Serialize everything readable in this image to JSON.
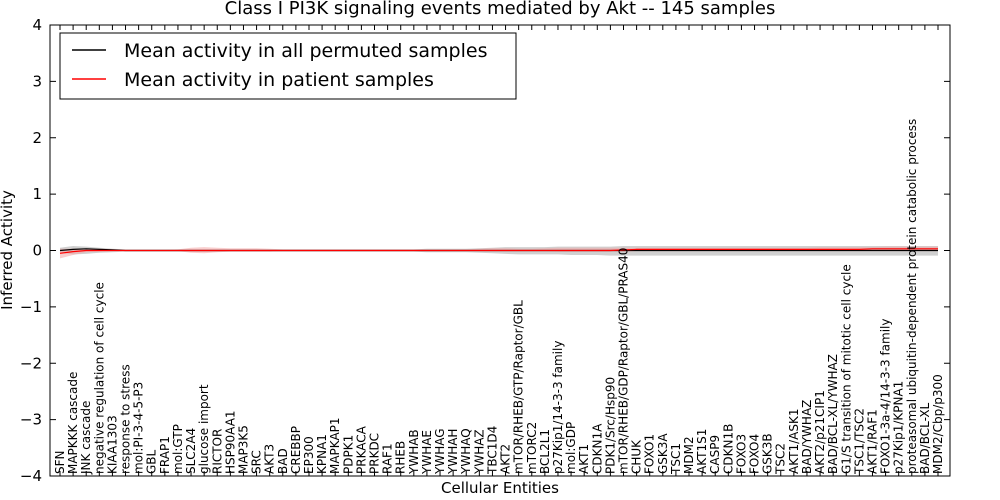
{
  "chart_data": {
    "type": "line",
    "title": "Class I PI3K signaling events mediated by Akt -- 145 samples",
    "xlabel": "Cellular Entities",
    "ylabel": "Inferred Activity",
    "ylim": [
      -4,
      4
    ],
    "yticks": [
      -4,
      -3,
      -2,
      -1,
      0,
      1,
      2,
      3,
      4
    ],
    "legend_position": "top-left",
    "categories": [
      "SFN",
      "MAPKKK cascade",
      "JNK cascade",
      "negative regulation of cell cycle",
      "KIAA1303",
      "response to stress",
      "mol:PI-3-4-5-P3",
      "GBL",
      "FRAP1",
      "mol:GTP",
      "SLC2A4",
      "glucose import",
      "RICTOR",
      "HSP90AA1",
      "MAP3K5",
      "SRC",
      "AKT3",
      "BAD",
      "CREBBP",
      "EP300",
      "KPNA1",
      "MAPKAP1",
      "PDPK1",
      "PRKACA",
      "PRKDC",
      "RAF1",
      "RHEB",
      "YWHAB",
      "YWHAE",
      "YWHAG",
      "YWHAH",
      "YWHAQ",
      "YWHAZ",
      "TBC1D4",
      "AKT2",
      "mTOR/RHEB/GTP/Raptor/GBL",
      "mTORC2",
      "BCL2L1",
      "p27Kip1/14-3-3 family",
      "mol:GDP",
      "AKT1",
      "CDKN1A",
      "PDK1/Src/Hsp90",
      "mTOR/RHEB/GDP/Raptor/GBL/PRAS40",
      "CHUK",
      "FOXO1",
      "GSK3A",
      "TSC1",
      "MDM2",
      "AKT1S1",
      "CASP9",
      "CDKN1B",
      "FOXO3",
      "FOXO4",
      "GSK3B",
      "TSC2",
      "AKT1/ASK1",
      "BAD/YWHAZ",
      "AKT2/p21CIP1",
      "BAD/BCL-XL/YWHAZ",
      "G1/S transition of mitotic cell cycle",
      "TSC1/TSC2",
      "AKT1/RAF1",
      "FOXO1-3a-4/14-3-3 family",
      "p27Kip1/KPNA1",
      "proteasomal ubiquitin-dependent protein catabolic process",
      "BAD/BCL-XL",
      "MDM2/Cbp/p300"
    ],
    "series": [
      {
        "name": "Mean activity in all permuted samples",
        "color": "#000000",
        "band_color": "#b0b0b0",
        "values": [
          0,
          0.02,
          0.03,
          0.02,
          0.01,
          0,
          0,
          0,
          0,
          0,
          0,
          0,
          0,
          0,
          0,
          0,
          0,
          0,
          0,
          0,
          0,
          0,
          0,
          0,
          0,
          0,
          0,
          0,
          0,
          0,
          0,
          0,
          0,
          0,
          0,
          0,
          0,
          0,
          0,
          0,
          0,
          0,
          0,
          0,
          0,
          0,
          0,
          0,
          0,
          0,
          0,
          0,
          0,
          0,
          0,
          0,
          0,
          0,
          0,
          0,
          0,
          0,
          0,
          0,
          0,
          0,
          0,
          0
        ],
        "lower": [
          -0.04,
          -0.07,
          -0.06,
          -0.04,
          -0.03,
          -0.02,
          -0.02,
          -0.02,
          -0.02,
          -0.02,
          -0.02,
          -0.02,
          -0.02,
          -0.02,
          -0.02,
          -0.02,
          -0.02,
          -0.02,
          -0.02,
          -0.02,
          -0.02,
          -0.02,
          -0.02,
          -0.02,
          -0.02,
          -0.02,
          -0.02,
          -0.02,
          -0.03,
          -0.03,
          -0.03,
          -0.03,
          -0.04,
          -0.05,
          -0.06,
          -0.07,
          -0.07,
          -0.07,
          -0.07,
          -0.08,
          -0.08,
          -0.08,
          -0.09,
          -0.09,
          -0.09,
          -0.09,
          -0.09,
          -0.09,
          -0.09,
          -0.09,
          -0.09,
          -0.09,
          -0.09,
          -0.09,
          -0.09,
          -0.09,
          -0.09,
          -0.09,
          -0.09,
          -0.09,
          -0.09,
          -0.09,
          -0.09,
          -0.09,
          -0.09,
          -0.09,
          -0.09,
          -0.09
        ],
        "upper": [
          0.05,
          0.08,
          0.07,
          0.05,
          0.03,
          0.02,
          0.02,
          0.02,
          0.02,
          0.02,
          0.02,
          0.02,
          0.02,
          0.02,
          0.02,
          0.02,
          0.02,
          0.02,
          0.02,
          0.02,
          0.02,
          0.02,
          0.02,
          0.02,
          0.02,
          0.02,
          0.02,
          0.02,
          0.03,
          0.03,
          0.03,
          0.03,
          0.04,
          0.05,
          0.06,
          0.06,
          0.06,
          0.06,
          0.07,
          0.07,
          0.07,
          0.07,
          0.07,
          0.08,
          0.08,
          0.08,
          0.08,
          0.08,
          0.08,
          0.08,
          0.08,
          0.08,
          0.08,
          0.08,
          0.08,
          0.08,
          0.08,
          0.08,
          0.08,
          0.08,
          0.08,
          0.08,
          0.08,
          0.08,
          0.08,
          0.08,
          0.08,
          0.08
        ]
      },
      {
        "name": "Mean activity in patient samples",
        "color": "#ff0000",
        "band_color": "#f4a6a6",
        "values": [
          -0.05,
          -0.02,
          0,
          0,
          0,
          0,
          0,
          0,
          0,
          0,
          0,
          0,
          0,
          0,
          0,
          0,
          0,
          0,
          0,
          0,
          0,
          0,
          0,
          0,
          0,
          0,
          0,
          0,
          0,
          0,
          0,
          0,
          0,
          0,
          0,
          0,
          0,
          0,
          0,
          0,
          0,
          0,
          0,
          0.01,
          0.02,
          0.02,
          0.02,
          0.02,
          0.02,
          0.02,
          0.02,
          0.02,
          0.02,
          0.02,
          0.02,
          0.02,
          0.02,
          0.02,
          0.02,
          0.02,
          0.02,
          0.02,
          0.03,
          0.03,
          0.03,
          0.03,
          0.03,
          0.03
        ],
        "lower": [
          -0.14,
          -0.08,
          -0.03,
          -0.02,
          -0.01,
          -0.01,
          -0.01,
          -0.01,
          -0.01,
          -0.01,
          -0.04,
          -0.05,
          -0.03,
          -0.02,
          -0.02,
          -0.02,
          -0.02,
          -0.01,
          -0.01,
          -0.01,
          -0.01,
          -0.01,
          -0.01,
          -0.01,
          -0.01,
          -0.01,
          -0.01,
          -0.01,
          -0.01,
          -0.01,
          -0.01,
          -0.01,
          -0.01,
          -0.01,
          -0.01,
          -0.01,
          -0.01,
          -0.01,
          -0.02,
          -0.02,
          -0.02,
          -0.02,
          -0.02,
          -0.02,
          -0.01,
          -0.01,
          -0.01,
          -0.01,
          -0.01,
          -0.01,
          -0.01,
          -0.01,
          -0.01,
          -0.01,
          -0.01,
          -0.01,
          -0.01,
          -0.01,
          -0.01,
          -0.01,
          -0.01,
          -0.01,
          -0.01,
          -0.01,
          -0.01,
          -0.01,
          -0.01,
          -0.01
        ],
        "upper": [
          0.03,
          0.03,
          0.03,
          0.02,
          0.01,
          0.01,
          0.01,
          0.01,
          0.01,
          0.02,
          0.05,
          0.06,
          0.05,
          0.04,
          0.04,
          0.04,
          0.03,
          0.02,
          0.02,
          0.02,
          0.02,
          0.02,
          0.02,
          0.02,
          0.02,
          0.02,
          0.02,
          0.02,
          0.02,
          0.02,
          0.02,
          0.02,
          0.03,
          0.04,
          0.04,
          0.03,
          0.03,
          0.04,
          0.05,
          0.05,
          0.05,
          0.05,
          0.05,
          0.05,
          0.05,
          0.05,
          0.05,
          0.05,
          0.05,
          0.05,
          0.05,
          0.05,
          0.05,
          0.05,
          0.05,
          0.05,
          0.05,
          0.05,
          0.06,
          0.06,
          0.06,
          0.06,
          0.06,
          0.07,
          0.07,
          0.07,
          0.07,
          0.07
        ]
      }
    ]
  }
}
